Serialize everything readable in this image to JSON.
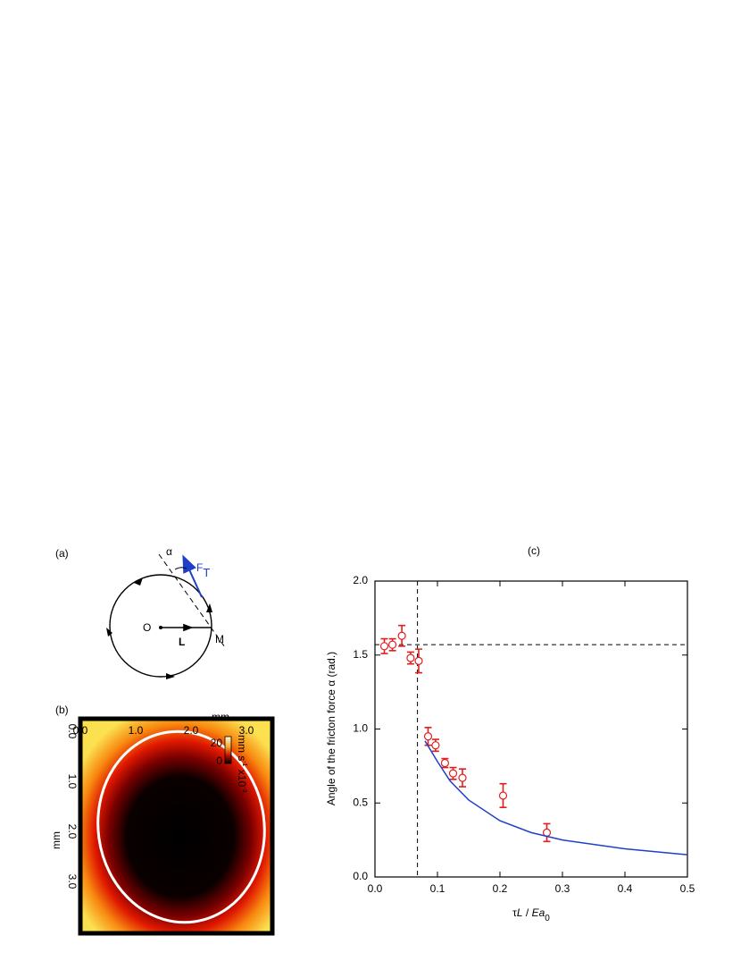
{
  "panels": {
    "a": {
      "label": "(a)",
      "alpha": "α",
      "force": "F",
      "force_sub": "T",
      "origin": "O",
      "radius": "L",
      "point": "M"
    },
    "b": {
      "label": "(b)",
      "x_unit": "mm",
      "y_unit": "mm",
      "x_tick_labels": [
        "0.0",
        "1.0",
        "2.0",
        "3.0"
      ],
      "y_tick_labels": [
        "0.0",
        "1.0",
        "2.0",
        "3.0"
      ],
      "colorbar_labels": [
        "20",
        "0"
      ],
      "colorbar_unit": [
        "mm s",
        "-1",
        " x10",
        "-3"
      ]
    }
  },
  "chart_data": {
    "type": "scatter",
    "title": "(c)",
    "xlabel": [
      "τ",
      "L",
      " / ",
      "Ea",
      "0"
    ],
    "ylabel": "Angle of the fricton force α (rad.)",
    "xlim": [
      0,
      0.5
    ],
    "ylim": [
      0,
      2.0
    ],
    "xticks": [
      {
        "value": 0,
        "label": "0.0"
      },
      0.1,
      0.2,
      0.3,
      0.4,
      0.5
    ],
    "yticks": [
      {
        "value": 0,
        "label": "0.0"
      },
      0.5,
      {
        "value": 1,
        "label": "1.0"
      },
      1.5,
      {
        "value": 2,
        "label": "2.0"
      }
    ],
    "reference_lines": {
      "x": 0.068,
      "y": 1.57
    },
    "series": [
      {
        "type": "scatter",
        "color": "#e02020",
        "x": [
          0.015,
          0.028,
          0.043,
          0.057,
          0.07,
          0.085,
          0.097,
          0.112,
          0.125,
          0.14,
          0.205,
          0.275
        ],
        "values": [
          1.56,
          1.57,
          1.63,
          1.48,
          1.46,
          0.95,
          0.89,
          0.77,
          0.7,
          0.67,
          0.55,
          0.3
        ],
        "errors": [
          0.05,
          0.04,
          0.07,
          0.04,
          0.08,
          0.06,
          0.04,
          0.03,
          0.04,
          0.06,
          0.08,
          0.06
        ]
      },
      {
        "type": "line",
        "color": "#1f3fc8",
        "x": [
          0.08,
          0.1,
          0.12,
          0.15,
          0.2,
          0.25,
          0.3,
          0.4,
          0.5
        ],
        "values": [
          0.92,
          0.78,
          0.65,
          0.52,
          0.38,
          0.3,
          0.25,
          0.19,
          0.15
        ]
      }
    ]
  }
}
